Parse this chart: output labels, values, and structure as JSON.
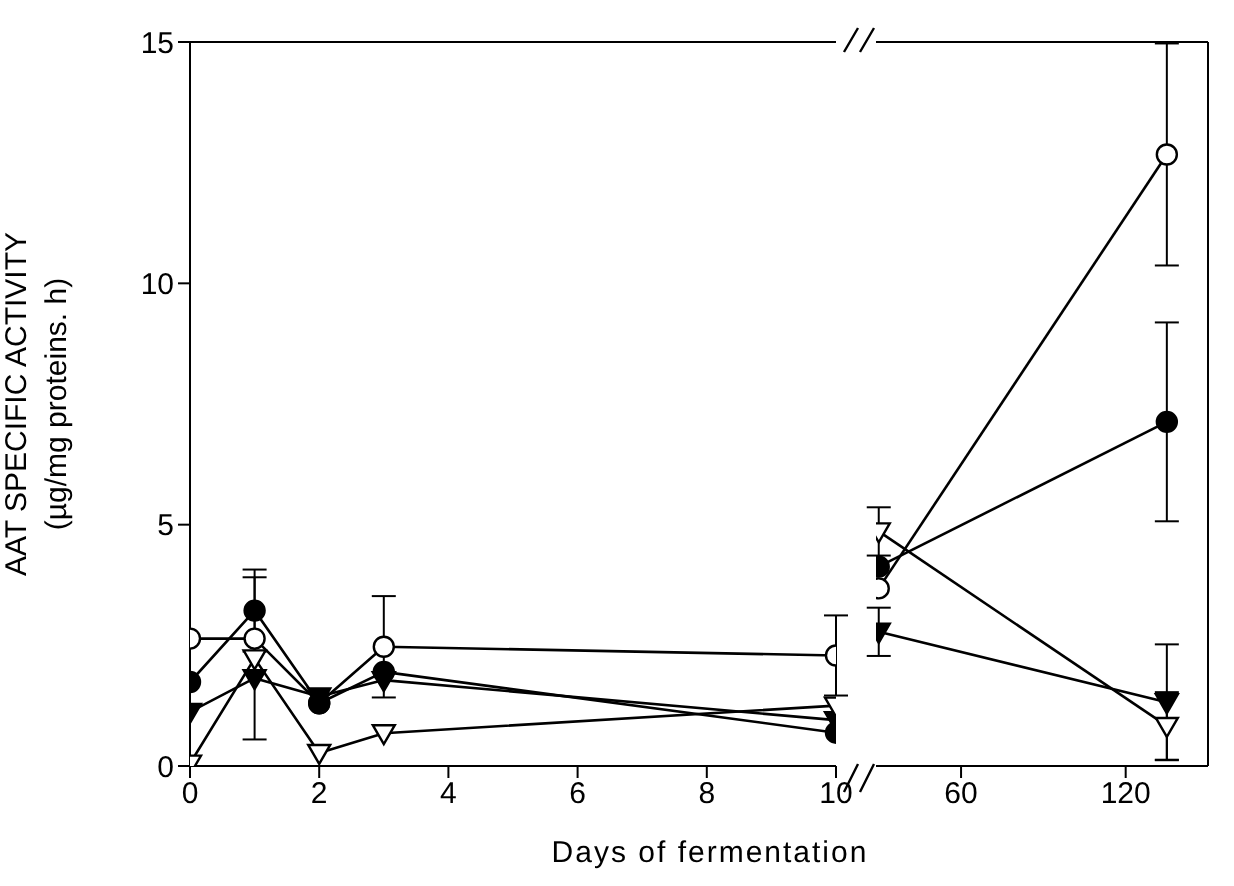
{
  "chart_data": [
    {
      "type": "line",
      "xlabel": "Days of fermentation",
      "ylabel": "AAT SPECIFIC ACTIVITY\n(µg/mg proteins. h)",
      "x": [
        0,
        1,
        2,
        3,
        10
      ],
      "xlim": [
        0,
        10
      ],
      "xticks": [
        0,
        2,
        4,
        6,
        8,
        10
      ],
      "ylim": [
        0,
        15
      ],
      "yticks": [
        0,
        5,
        10,
        15
      ],
      "line_style": "solid",
      "series": [
        {
          "color": "#000000",
          "marker": "circle-open",
          "values": [
            2.64,
            2.64,
            1.3,
            2.47,
            2.29
          ],
          "errors": [
            null,
            null,
            null,
            1.05,
            0.83
          ]
        },
        {
          "color": "#000000",
          "marker": "circle",
          "values": [
            1.74,
            3.22,
            1.3,
            1.95,
            0.69
          ],
          "errors": [
            null,
            0.85,
            null,
            null,
            null
          ]
        },
        {
          "color": "#000000",
          "marker": "triangle",
          "values": [
            1.12,
            1.82,
            1.44,
            1.78,
            0.95
          ],
          "errors": [
            null,
            null,
            null,
            null,
            null
          ]
        },
        {
          "color": "#000000",
          "marker": "triangle-open",
          "values": [
            0.05,
            2.23,
            0.27,
            0.68,
            1.25
          ],
          "errors": [
            null,
            1.68,
            null,
            null,
            null
          ]
        }
      ]
    },
    {
      "type": "line",
      "x": [
        30,
        135
      ],
      "xlim": [
        29,
        150
      ],
      "xticks": [
        60,
        120
      ],
      "ylim": [
        0,
        15
      ],
      "yticks": [
        0,
        5,
        10,
        15
      ],
      "tick_labels": "x",
      "line_style": "solid",
      "series": [
        {
          "color": "#000000",
          "marker": "circle-open",
          "values": [
            3.68,
            12.67
          ],
          "errors": [
            null,
            2.3
          ]
        },
        {
          "color": "#000000",
          "marker": "circle",
          "values": [
            4.13,
            7.13
          ],
          "errors": [
            null,
            2.06
          ]
        },
        {
          "color": "#000000",
          "marker": "triangle",
          "values": [
            2.78,
            1.32
          ],
          "errors": [
            0.5,
            1.2
          ]
        },
        {
          "color": "#000000",
          "marker": "triangle-open",
          "values": [
            4.86,
            0.83
          ],
          "errors": [
            0.5,
            0.7
          ]
        }
      ]
    }
  ]
}
